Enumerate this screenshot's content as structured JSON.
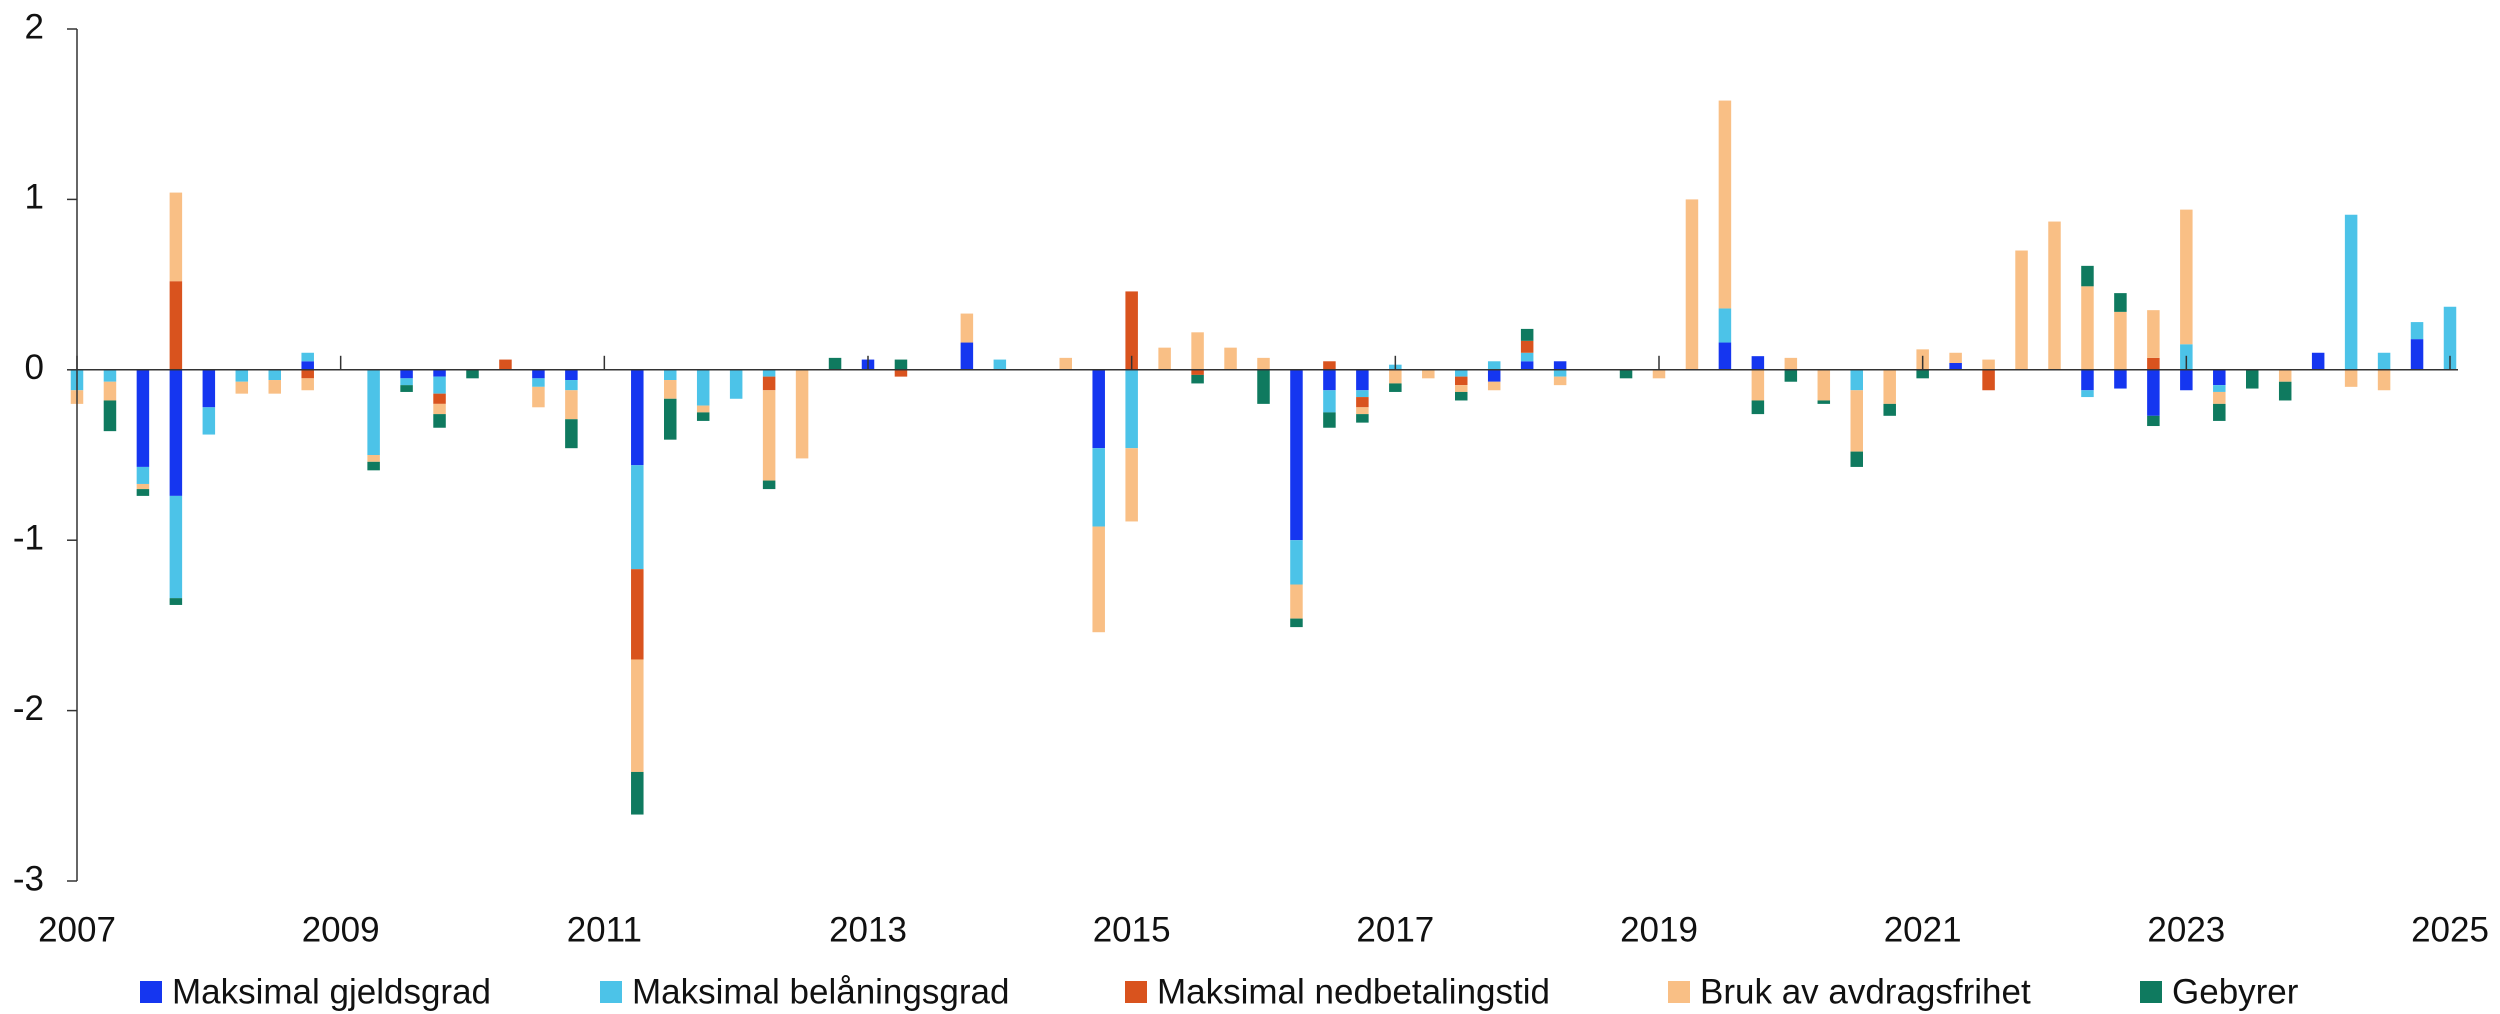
{
  "chart_data": {
    "type": "bar",
    "stacked": true,
    "x": [
      2007,
      2007.25,
      2007.5,
      2007.75,
      2008,
      2008.25,
      2008.5,
      2008.75,
      2009,
      2009.25,
      2009.5,
      2009.75,
      2010,
      2010.25,
      2010.5,
      2010.75,
      2011,
      2011.25,
      2011.5,
      2011.75,
      2012,
      2012.25,
      2012.5,
      2012.75,
      2013,
      2013.25,
      2013.5,
      2013.75,
      2014,
      2014.25,
      2014.5,
      2014.75,
      2015,
      2015.25,
      2015.5,
      2015.75,
      2016,
      2016.25,
      2016.5,
      2016.75,
      2017,
      2017.25,
      2017.5,
      2017.75,
      2018,
      2018.25,
      2018.5,
      2018.75,
      2019,
      2019.25,
      2019.5,
      2019.75,
      2020,
      2020.25,
      2020.5,
      2020.75,
      2021,
      2021.25,
      2021.5,
      2021.75,
      2022,
      2022.25,
      2022.5,
      2022.75,
      2023,
      2023.25,
      2023.5,
      2023.75,
      2024,
      2024.25,
      2024.5,
      2024.75,
      2025
    ],
    "xlim": [
      2007,
      2025
    ],
    "xticks": [
      2007,
      2009,
      2011,
      2013,
      2015,
      2017,
      2019,
      2021,
      2023,
      2025
    ],
    "ylim": [
      -3,
      2
    ],
    "yticks": [
      -3,
      -2,
      -1,
      0,
      1,
      2
    ],
    "series": [
      {
        "name": "Maksimal gjeldsgrad",
        "color": "#1536f0",
        "values": [
          0,
          0,
          -0.57,
          -0.74,
          -0.22,
          0,
          0,
          0.05,
          0,
          0,
          -0.05,
          -0.04,
          0,
          0,
          -0.05,
          -0.06,
          0,
          -0.56,
          0,
          0,
          0,
          0,
          0,
          0,
          0.06,
          0,
          0,
          0.16,
          0,
          0,
          0,
          -0.46,
          0,
          0,
          0,
          0,
          0,
          -1.0,
          -0.12,
          -0.12,
          0,
          0,
          0,
          -0.07,
          0.05,
          0.05,
          0,
          0,
          0,
          0,
          0.16,
          0.08,
          0,
          0,
          0,
          0,
          0,
          0.04,
          0,
          0,
          0,
          -0.12,
          -0.11,
          -0.27,
          -0.12,
          -0.09,
          0,
          0,
          0.1,
          0,
          0,
          0.18,
          0
        ]
      },
      {
        "name": "Maksimal belåningsgrad",
        "color": "#4cc3e8",
        "values": [
          -0.12,
          -0.07,
          -0.1,
          -0.6,
          -0.16,
          -0.07,
          -0.06,
          0.05,
          0,
          -0.5,
          -0.04,
          -0.1,
          0,
          0,
          -0.05,
          -0.06,
          0,
          -0.61,
          -0.06,
          -0.21,
          -0.17,
          -0.04,
          0,
          0,
          0,
          0,
          0,
          0,
          0.06,
          0,
          0,
          -0.46,
          -0.46,
          0,
          0,
          0,
          0,
          -0.26,
          -0.13,
          -0.04,
          0.03,
          0,
          -0.04,
          0.05,
          0.05,
          -0.04,
          0,
          0,
          0,
          0,
          0.2,
          0,
          0,
          0,
          -0.12,
          0,
          0,
          0,
          0,
          0,
          0,
          -0.04,
          0,
          0,
          0.15,
          -0.04,
          0,
          0,
          0,
          0.91,
          0.1,
          0.1,
          0.37
        ]
      },
      {
        "name": "Maksimal nedbetalingstid",
        "color": "#d9531e",
        "values": [
          0,
          0,
          0,
          0.52,
          0,
          0,
          0,
          -0.05,
          0,
          0,
          0,
          -0.06,
          0,
          0.06,
          0,
          0,
          0,
          -0.53,
          0,
          0,
          0,
          -0.08,
          0,
          0,
          0,
          -0.04,
          0,
          0,
          0,
          0,
          0,
          0,
          0.46,
          0,
          -0.03,
          0,
          0,
          0,
          0.05,
          -0.06,
          0,
          0,
          -0.05,
          0,
          0.07,
          0,
          0,
          0,
          0,
          0,
          0,
          0,
          0,
          0,
          0,
          0,
          0,
          0,
          -0.12,
          0,
          0,
          0,
          0,
          0.07,
          0,
          0,
          0,
          0,
          0,
          0,
          0,
          0,
          0
        ]
      },
      {
        "name": "Bruk av avdragsfrihet",
        "color": "#f9bf85",
        "values": [
          -0.08,
          -0.11,
          -0.03,
          0.52,
          0,
          -0.07,
          -0.08,
          -0.07,
          0,
          -0.04,
          0,
          -0.06,
          0,
          0,
          -0.12,
          -0.17,
          0,
          -0.66,
          -0.11,
          -0.04,
          0,
          -0.53,
          -0.52,
          0,
          0,
          0,
          0,
          0.17,
          0,
          0,
          0.07,
          -0.62,
          -0.43,
          0.13,
          0.22,
          0.13,
          0.07,
          -0.2,
          0,
          -0.04,
          -0.08,
          -0.05,
          -0.04,
          -0.05,
          0,
          -0.05,
          0,
          0,
          -0.05,
          1.0,
          1.22,
          -0.18,
          0.07,
          -0.18,
          -0.36,
          -0.2,
          0.12,
          0.06,
          0.06,
          0.7,
          0.87,
          0.49,
          0.34,
          0.28,
          0.79,
          -0.07,
          0,
          -0.07,
          0,
          -0.1,
          -0.12,
          0,
          0
        ]
      },
      {
        "name": "Gebyrer",
        "color": "#0f7a5f",
        "values": [
          0,
          -0.18,
          -0.04,
          -0.04,
          0,
          0,
          0,
          0,
          0,
          -0.05,
          -0.04,
          -0.08,
          -0.05,
          0,
          0,
          -0.17,
          0,
          -0.25,
          -0.24,
          -0.05,
          0,
          -0.05,
          0,
          0.07,
          0,
          0.06,
          0,
          0,
          0,
          0,
          0,
          0,
          0,
          0,
          -0.05,
          0,
          -0.2,
          -0.05,
          -0.09,
          -0.05,
          -0.05,
          0,
          -0.05,
          0,
          0.07,
          0,
          0,
          -0.05,
          0,
          0,
          0,
          -0.08,
          -0.07,
          -0.02,
          -0.09,
          -0.07,
          -0.05,
          0,
          0,
          0,
          0,
          0.12,
          0.11,
          -0.06,
          0,
          -0.1,
          -0.11,
          -0.11,
          0,
          0,
          0,
          0,
          0
        ]
      }
    ]
  }
}
